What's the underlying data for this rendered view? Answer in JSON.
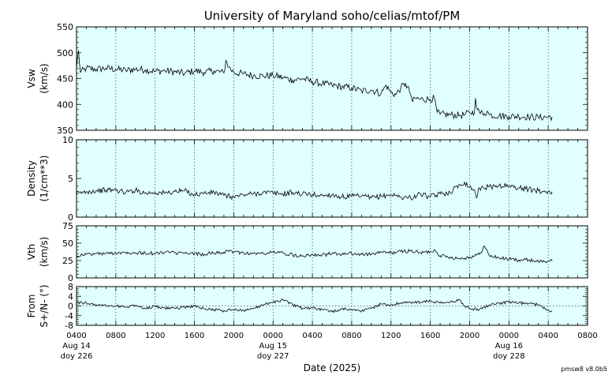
{
  "chart_data": {
    "type": "line",
    "title": "University of Maryland  soho/celias/mtof/PM",
    "xlabel": "Date (2025)",
    "footer": "pmsw8 v8.0b5",
    "xlim_hours": [
      0,
      52
    ],
    "x_ticks": [
      {
        "h": 0,
        "label": "0400",
        "date": "Aug 14",
        "doy": "doy 226"
      },
      {
        "h": 4,
        "label": "0800"
      },
      {
        "h": 8,
        "label": "1200"
      },
      {
        "h": 12,
        "label": "1600"
      },
      {
        "h": 16,
        "label": "2000"
      },
      {
        "h": 20,
        "label": "0000",
        "date": "Aug 15",
        "doy": "doy 227"
      },
      {
        "h": 24,
        "label": "0400"
      },
      {
        "h": 28,
        "label": "0800"
      },
      {
        "h": 32,
        "label": "1200"
      },
      {
        "h": 36,
        "label": "1600"
      },
      {
        "h": 40,
        "label": "2000"
      },
      {
        "h": 44,
        "label": "0000",
        "date": "Aug 16",
        "doy": "doy 228"
      },
      {
        "h": 48,
        "label": "0400"
      },
      {
        "h": 52,
        "label": "0800"
      }
    ],
    "panels": [
      {
        "id": "vsw",
        "ylabel": "Vsw",
        "yunit": "(km/s)",
        "ylim": [
          350,
          550
        ],
        "yticks": [
          350,
          400,
          450,
          500,
          550
        ],
        "zero_line": false,
        "series": [
          [
            0,
            470
          ],
          [
            0.2,
            505
          ],
          [
            0.4,
            462
          ],
          [
            1,
            470
          ],
          [
            2,
            468
          ],
          [
            3,
            470
          ],
          [
            4,
            468
          ],
          [
            5,
            466
          ],
          [
            6,
            468
          ],
          [
            7,
            467
          ],
          [
            8,
            464
          ],
          [
            9,
            465
          ],
          [
            10,
            463
          ],
          [
            11,
            460
          ],
          [
            12,
            465
          ],
          [
            13,
            462
          ],
          [
            14,
            465
          ],
          [
            15,
            461
          ],
          [
            15.2,
            485
          ],
          [
            15.5,
            472
          ],
          [
            16,
            462
          ],
          [
            17,
            459
          ],
          [
            18,
            456
          ],
          [
            19,
            455
          ],
          [
            20,
            456
          ],
          [
            21,
            452
          ],
          [
            22,
            447
          ],
          [
            23,
            450
          ],
          [
            24,
            444
          ],
          [
            25,
            440
          ],
          [
            26,
            437
          ],
          [
            27,
            434
          ],
          [
            28,
            432
          ],
          [
            29,
            426
          ],
          [
            30,
            428
          ],
          [
            31,
            421
          ],
          [
            31.5,
            437
          ],
          [
            32,
            423
          ],
          [
            32.5,
            419
          ],
          [
            33,
            432
          ],
          [
            33.5,
            440
          ],
          [
            34,
            420
          ],
          [
            34.2,
            405
          ],
          [
            34.5,
            412
          ],
          [
            35,
            410
          ],
          [
            36,
            410
          ],
          [
            36.4,
            412
          ],
          [
            36.7,
            385
          ],
          [
            37,
            381
          ],
          [
            38,
            380
          ],
          [
            39,
            379
          ],
          [
            39.5,
            380
          ],
          [
            40,
            384
          ],
          [
            40.5,
            385
          ],
          [
            40.6,
            412
          ],
          [
            40.8,
            390
          ],
          [
            41,
            384
          ],
          [
            41.5,
            382
          ],
          [
            41.8,
            387
          ],
          [
            42,
            380
          ],
          [
            43,
            378
          ],
          [
            44,
            377
          ],
          [
            45,
            377
          ],
          [
            46,
            376
          ],
          [
            47,
            375
          ],
          [
            48,
            376
          ],
          [
            48.4,
            376
          ]
        ]
      },
      {
        "id": "density",
        "ylabel": "Density",
        "yunit": "(1/cm**3)",
        "ylim": [
          0,
          10
        ],
        "yticks": [
          0,
          5,
          10
        ],
        "zero_line": false,
        "series": [
          [
            0,
            3
          ],
          [
            1,
            3.3
          ],
          [
            2,
            3.4
          ],
          [
            3,
            3.5
          ],
          [
            4,
            3.5
          ],
          [
            5,
            3.2
          ],
          [
            6,
            3.5
          ],
          [
            7,
            3.1
          ],
          [
            8,
            3.2
          ],
          [
            9,
            3.1
          ],
          [
            10,
            3.3
          ],
          [
            11,
            3.4
          ],
          [
            12,
            2.9
          ],
          [
            13,
            3.1
          ],
          [
            14,
            3.2
          ],
          [
            15,
            2.8
          ],
          [
            16,
            2.6
          ],
          [
            17,
            2.9
          ],
          [
            18,
            3.0
          ],
          [
            19,
            3.2
          ],
          [
            20,
            3.1
          ],
          [
            21,
            3.0
          ],
          [
            22,
            3.2
          ],
          [
            23,
            3.0
          ],
          [
            24,
            2.9
          ],
          [
            25,
            2.8
          ],
          [
            26,
            2.9
          ],
          [
            27,
            2.6
          ],
          [
            28,
            2.7
          ],
          [
            29,
            2.7
          ],
          [
            30,
            2.5
          ],
          [
            31,
            2.7
          ],
          [
            32,
            2.9
          ],
          [
            33,
            2.6
          ],
          [
            34,
            2.5
          ],
          [
            35,
            3.0
          ],
          [
            36,
            2.6
          ],
          [
            37,
            3.0
          ],
          [
            38,
            3.2
          ],
          [
            39,
            4.2
          ],
          [
            39.5,
            4.5
          ],
          [
            40,
            3.9
          ],
          [
            40.5,
            3.5
          ],
          [
            40.7,
            2.5
          ],
          [
            41,
            3.8
          ],
          [
            42,
            3.9
          ],
          [
            43,
            4.1
          ],
          [
            44,
            4.0
          ],
          [
            45,
            3.8
          ],
          [
            46,
            3.6
          ],
          [
            47,
            3.4
          ],
          [
            48,
            3.3
          ],
          [
            48.4,
            3.3
          ]
        ]
      },
      {
        "id": "vth",
        "ylabel": "Vth",
        "yunit": "(km/s)",
        "ylim": [
          0,
          75
        ],
        "yticks": [
          0,
          25,
          50,
          75
        ],
        "zero_line": false,
        "series": [
          [
            0,
            32
          ],
          [
            1,
            34
          ],
          [
            2,
            35
          ],
          [
            3,
            35
          ],
          [
            4,
            36
          ],
          [
            5,
            37
          ],
          [
            6,
            36
          ],
          [
            7,
            36
          ],
          [
            8,
            35
          ],
          [
            9,
            37
          ],
          [
            10,
            36
          ],
          [
            11,
            35
          ],
          [
            12,
            35
          ],
          [
            13,
            34
          ],
          [
            14,
            36
          ],
          [
            15,
            37
          ],
          [
            16,
            38
          ],
          [
            17,
            36
          ],
          [
            18,
            35
          ],
          [
            19,
            35
          ],
          [
            20,
            37
          ],
          [
            21,
            36
          ],
          [
            22,
            33
          ],
          [
            23,
            32
          ],
          [
            24,
            34
          ],
          [
            25,
            33
          ],
          [
            26,
            35
          ],
          [
            27,
            34
          ],
          [
            28,
            35
          ],
          [
            29,
            34
          ],
          [
            30,
            34
          ],
          [
            31,
            37
          ],
          [
            32,
            36
          ],
          [
            33,
            38
          ],
          [
            34,
            39
          ],
          [
            35,
            36
          ],
          [
            36,
            38
          ],
          [
            36.5,
            40
          ],
          [
            37,
            32
          ],
          [
            38,
            30
          ],
          [
            39,
            28
          ],
          [
            40,
            30
          ],
          [
            41,
            34
          ],
          [
            41.5,
            46
          ],
          [
            42,
            32
          ],
          [
            43,
            29
          ],
          [
            44,
            27
          ],
          [
            45,
            26
          ],
          [
            46,
            26
          ],
          [
            47,
            24
          ],
          [
            48,
            24
          ],
          [
            48.4,
            24
          ]
        ]
      },
      {
        "id": "flow",
        "ylabel": "From",
        "yunit": "S+/N- (°)",
        "ylim": [
          -8,
          8
        ],
        "yticks": [
          -8,
          -4,
          0,
          4,
          8
        ],
        "zero_line": true,
        "series": [
          [
            0,
            1.5
          ],
          [
            1,
            1.2
          ],
          [
            2,
            0.5
          ],
          [
            3,
            0.2
          ],
          [
            4,
            0
          ],
          [
            5,
            -0.5
          ],
          [
            6,
            0.3
          ],
          [
            7,
            -1
          ],
          [
            8,
            -0.2
          ],
          [
            9,
            -0.8
          ],
          [
            10,
            -1
          ],
          [
            11,
            -0.5
          ],
          [
            12,
            0
          ],
          [
            13,
            -1.2
          ],
          [
            14,
            -1.5
          ],
          [
            15,
            -2
          ],
          [
            16,
            -1.5
          ],
          [
            17,
            -1.8
          ],
          [
            18,
            -1.0
          ],
          [
            19,
            0.5
          ],
          [
            20,
            1.5
          ],
          [
            21,
            2.5
          ],
          [
            22,
            0.5
          ],
          [
            23,
            -1
          ],
          [
            24,
            -0.8
          ],
          [
            25,
            -1.5
          ],
          [
            26,
            -2.5
          ],
          [
            27,
            -1.2
          ],
          [
            28,
            -1.5
          ],
          [
            29,
            -2
          ],
          [
            30,
            -1
          ],
          [
            31,
            0.8
          ],
          [
            32,
            0.5
          ],
          [
            33,
            1.2
          ],
          [
            34,
            1.5
          ],
          [
            35,
            1.5
          ],
          [
            36,
            2
          ],
          [
            37,
            1.2
          ],
          [
            38,
            1.5
          ],
          [
            39,
            2.5
          ],
          [
            39.5,
            0
          ],
          [
            40,
            -1
          ],
          [
            41,
            -1.5
          ],
          [
            42,
            0.5
          ],
          [
            43,
            1.2
          ],
          [
            44,
            1.5
          ],
          [
            45,
            1.2
          ],
          [
            46,
            1
          ],
          [
            47,
            0.5
          ],
          [
            48,
            -1.8
          ],
          [
            48.4,
            -2
          ]
        ]
      }
    ]
  }
}
